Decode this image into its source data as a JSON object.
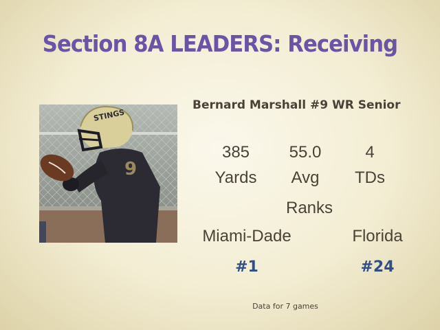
{
  "slide": {
    "title": "Section 8A LEADERS: Receiving",
    "player": "Bernard Marshall #9 WR Senior",
    "stats": [
      {
        "value": "385",
        "label": "Yards"
      },
      {
        "value": "55.0",
        "label": "Avg"
      },
      {
        "value": "4",
        "label": "TDs"
      }
    ],
    "ranks_label": "Ranks",
    "ranks": [
      {
        "region": "Miami-Dade",
        "rank": "#1"
      },
      {
        "region": "Florida",
        "rank": "#24"
      }
    ],
    "helmet_text": "STINGS",
    "jersey_number": "9",
    "footnote": "Data for 7 games"
  },
  "colors": {
    "title": "#6b54a6",
    "rank": "#2f4f86",
    "text": "#4a4236"
  }
}
